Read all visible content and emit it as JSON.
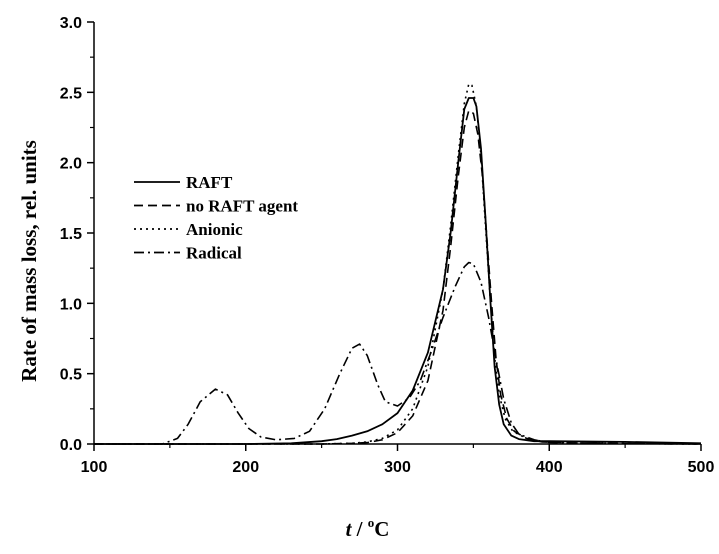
{
  "chart_data": {
    "type": "line",
    "title": "",
    "xlabel": "t / °C",
    "xlabel_parts": {
      "var": "t",
      "sep": " / ",
      "deg": "o",
      "unit": "C"
    },
    "ylabel": "Rate of mass loss, rel. units",
    "xlim": [
      100,
      500
    ],
    "ylim": [
      0,
      3.0
    ],
    "xticks": [
      "100",
      "200",
      "300",
      "400",
      "500"
    ],
    "yticks": [
      "0.0",
      "0.5",
      "1.0",
      "1.5",
      "2.0",
      "2.5",
      "3.0"
    ],
    "grid": false,
    "legend_position": "left",
    "series": [
      {
        "name": "RAFT",
        "dash": "solid",
        "points": [
          [
            100,
            0
          ],
          [
            200,
            0
          ],
          [
            230,
            0.005
          ],
          [
            250,
            0.02
          ],
          [
            260,
            0.035
          ],
          [
            270,
            0.06
          ],
          [
            280,
            0.09
          ],
          [
            290,
            0.14
          ],
          [
            300,
            0.22
          ],
          [
            310,
            0.38
          ],
          [
            320,
            0.65
          ],
          [
            330,
            1.1
          ],
          [
            335,
            1.5
          ],
          [
            340,
            2.0
          ],
          [
            344,
            2.38
          ],
          [
            347,
            2.46
          ],
          [
            350,
            2.46
          ],
          [
            352,
            2.4
          ],
          [
            355,
            2.1
          ],
          [
            358,
            1.6
          ],
          [
            361,
            1.05
          ],
          [
            364,
            0.55
          ],
          [
            367,
            0.28
          ],
          [
            370,
            0.14
          ],
          [
            375,
            0.06
          ],
          [
            380,
            0.035
          ],
          [
            390,
            0.02
          ],
          [
            400,
            0.02
          ],
          [
            450,
            0.015
          ],
          [
            500,
            0.005
          ]
        ]
      },
      {
        "name": "no RAFT agent",
        "dash": "dashed",
        "points": [
          [
            100,
            0
          ],
          [
            250,
            0
          ],
          [
            270,
            0.005
          ],
          [
            280,
            0.01
          ],
          [
            290,
            0.03
          ],
          [
            300,
            0.08
          ],
          [
            310,
            0.2
          ],
          [
            320,
            0.45
          ],
          [
            330,
            0.95
          ],
          [
            335,
            1.4
          ],
          [
            340,
            1.9
          ],
          [
            344,
            2.25
          ],
          [
            347,
            2.37
          ],
          [
            350,
            2.35
          ],
          [
            353,
            2.2
          ],
          [
            356,
            1.9
          ],
          [
            359,
            1.45
          ],
          [
            362,
            1.0
          ],
          [
            365,
            0.6
          ],
          [
            368,
            0.35
          ],
          [
            372,
            0.18
          ],
          [
            377,
            0.09
          ],
          [
            385,
            0.04
          ],
          [
            395,
            0.015
          ],
          [
            420,
            0.005
          ],
          [
            500,
            0
          ]
        ]
      },
      {
        "name": "Anionic",
        "dash": "dotted",
        "points": [
          [
            100,
            0
          ],
          [
            250,
            0
          ],
          [
            270,
            0.005
          ],
          [
            280,
            0.015
          ],
          [
            290,
            0.04
          ],
          [
            300,
            0.1
          ],
          [
            310,
            0.25
          ],
          [
            320,
            0.55
          ],
          [
            330,
            1.1
          ],
          [
            335,
            1.55
          ],
          [
            340,
            2.05
          ],
          [
            344,
            2.42
          ],
          [
            347,
            2.56
          ],
          [
            349,
            2.55
          ],
          [
            352,
            2.4
          ],
          [
            355,
            2.05
          ],
          [
            358,
            1.55
          ],
          [
            361,
            1.05
          ],
          [
            364,
            0.62
          ],
          [
            367,
            0.35
          ],
          [
            371,
            0.18
          ],
          [
            376,
            0.09
          ],
          [
            385,
            0.04
          ],
          [
            395,
            0.02
          ],
          [
            420,
            0.005
          ],
          [
            500,
            0
          ]
        ]
      },
      {
        "name": "Radical",
        "dash": "dashdot",
        "points": [
          [
            100,
            0
          ],
          [
            145,
            0
          ],
          [
            155,
            0.04
          ],
          [
            162,
            0.14
          ],
          [
            170,
            0.3
          ],
          [
            180,
            0.39
          ],
          [
            188,
            0.35
          ],
          [
            195,
            0.22
          ],
          [
            202,
            0.11
          ],
          [
            210,
            0.05
          ],
          [
            220,
            0.03
          ],
          [
            232,
            0.04
          ],
          [
            242,
            0.09
          ],
          [
            252,
            0.25
          ],
          [
            262,
            0.5
          ],
          [
            270,
            0.68
          ],
          [
            275,
            0.71
          ],
          [
            280,
            0.63
          ],
          [
            287,
            0.42
          ],
          [
            292,
            0.3
          ],
          [
            300,
            0.27
          ],
          [
            308,
            0.33
          ],
          [
            315,
            0.45
          ],
          [
            322,
            0.65
          ],
          [
            330,
            0.9
          ],
          [
            338,
            1.12
          ],
          [
            344,
            1.26
          ],
          [
            347,
            1.29
          ],
          [
            350,
            1.28
          ],
          [
            355,
            1.15
          ],
          [
            360,
            0.9
          ],
          [
            365,
            0.6
          ],
          [
            370,
            0.32
          ],
          [
            375,
            0.15
          ],
          [
            380,
            0.07
          ],
          [
            390,
            0.03
          ],
          [
            400,
            0.01
          ],
          [
            430,
            0.005
          ],
          [
            500,
            0
          ]
        ]
      }
    ]
  }
}
